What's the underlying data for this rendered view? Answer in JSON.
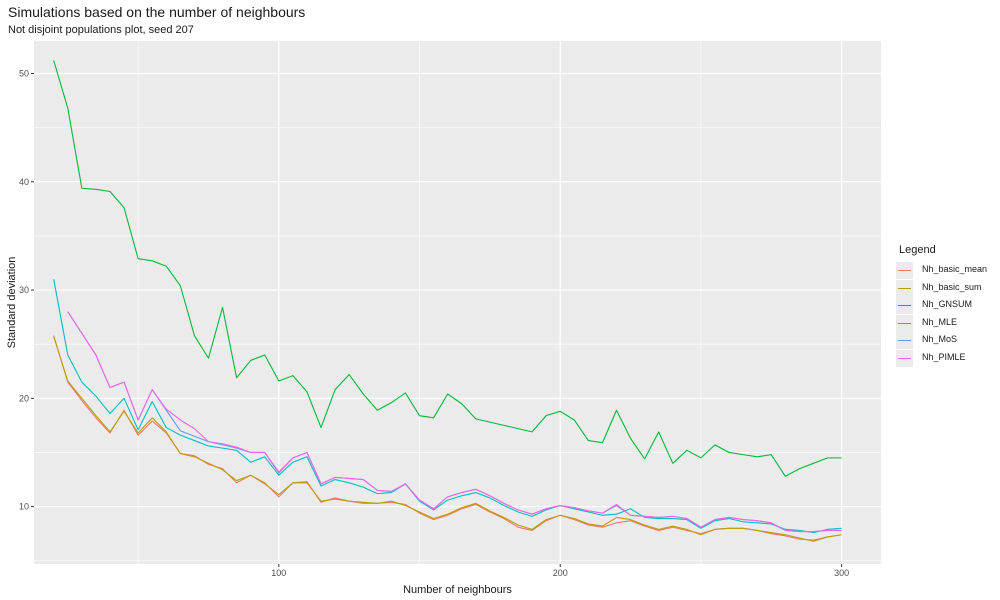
{
  "chart_data": {
    "type": "line",
    "title": "Simulations based on the number of neighbours",
    "subtitle": "Not disjoint populations plot, seed 207",
    "xlabel": "Number of neighbours",
    "ylabel": "Standard deviation",
    "xlim": [
      13,
      314
    ],
    "ylim": [
      4.7,
      53
    ],
    "x_ticks": [
      100,
      200,
      300
    ],
    "y_ticks": [
      10,
      20,
      30,
      40,
      50
    ],
    "grid": true,
    "legend_title": "Legend",
    "legend_position": "right",
    "x": [
      20,
      25,
      30,
      35,
      40,
      45,
      50,
      55,
      60,
      65,
      70,
      75,
      80,
      85,
      90,
      95,
      100,
      105,
      110,
      115,
      120,
      125,
      130,
      135,
      140,
      145,
      150,
      155,
      160,
      165,
      170,
      175,
      180,
      185,
      190,
      195,
      200,
      205,
      210,
      215,
      220,
      225,
      230,
      235,
      240,
      245,
      250,
      255,
      260,
      265,
      270,
      275,
      280,
      285,
      290,
      295,
      300
    ],
    "series": [
      {
        "name": "Nh_basic_mean",
        "color": "#F8766D",
        "values": [
          25.8,
          21.5,
          19.8,
          18.2,
          16.8,
          18.9,
          16.6,
          17.9,
          16.8,
          14.9,
          14.7,
          13.9,
          13.5,
          12.2,
          12.9,
          12.2,
          10.9,
          12.2,
          12.3,
          10.4,
          10.8,
          10.5,
          10.3,
          10.3,
          10.4,
          10.2,
          9.4,
          8.8,
          9.2,
          9.8,
          10.2,
          9.5,
          8.9,
          8.1,
          7.8,
          8.7,
          9.2,
          8.8,
          8.3,
          8.1,
          8.5,
          8.7,
          8.2,
          7.8,
          8.1,
          7.8,
          7.5,
          7.9,
          8.0,
          8.0,
          7.8,
          7.5,
          7.3,
          7.0,
          6.9,
          7.2,
          7.4
        ]
      },
      {
        "name": "Nh_basic_sum",
        "color": "#B79F00",
        "values": [
          25.7,
          21.6,
          20.0,
          18.4,
          16.9,
          18.8,
          16.8,
          18.2,
          16.9,
          14.9,
          14.6,
          14.0,
          13.4,
          12.4,
          12.9,
          12.1,
          11.1,
          12.2,
          12.2,
          10.5,
          10.7,
          10.5,
          10.4,
          10.3,
          10.5,
          10.1,
          9.5,
          8.9,
          9.3,
          9.9,
          10.3,
          9.6,
          9.0,
          8.3,
          7.9,
          8.8,
          9.2,
          8.9,
          8.4,
          8.2,
          9.0,
          8.8,
          8.3,
          7.9,
          8.2,
          7.9,
          7.4,
          7.9,
          8.0,
          8.0,
          7.8,
          7.6,
          7.4,
          7.1,
          6.8,
          7.2,
          7.4
        ]
      },
      {
        "name": "Nh_GNSUM",
        "color": "#00BA38",
        "values": [
          51.2,
          46.8,
          39.4,
          39.3,
          39.1,
          37.6,
          32.9,
          32.7,
          32.2,
          30.4,
          25.8,
          23.7,
          28.4,
          21.9,
          23.5,
          24.0,
          21.6,
          22.1,
          20.6,
          17.3,
          20.8,
          22.2,
          20.4,
          18.9,
          19.6,
          20.5,
          18.4,
          18.2,
          20.4,
          19.5,
          18.1,
          17.8,
          17.5,
          17.2,
          16.9,
          18.4,
          18.8,
          18.0,
          16.1,
          15.9,
          18.9,
          16.3,
          14.4,
          16.9,
          14.0,
          15.2,
          14.5,
          15.7,
          15.0,
          14.8,
          14.6,
          14.8,
          12.8,
          13.5,
          14.0,
          14.5,
          14.5
        ]
      },
      {
        "name": "Nh_MLE",
        "color": "#00BFC4",
        "values": [
          31.0,
          24.0,
          21.5,
          20.2,
          18.6,
          20.0,
          17.1,
          19.7,
          17.3,
          16.6,
          16.1,
          15.6,
          15.4,
          15.2,
          14.1,
          14.6,
          12.9,
          14.1,
          14.6,
          11.9,
          12.5,
          12.2,
          11.8,
          11.2,
          11.3,
          12.1,
          10.5,
          9.7,
          10.6,
          11.0,
          11.3,
          10.8,
          10.1,
          9.5,
          9.1,
          9.7,
          10.1,
          9.8,
          9.5,
          9.2,
          9.3,
          9.8,
          9.0,
          8.9,
          8.9,
          8.8,
          8.0,
          8.7,
          8.9,
          8.6,
          8.5,
          8.4,
          7.9,
          7.8,
          7.6,
          7.9,
          8.0
        ]
      },
      {
        "name": "Nh_MoS",
        "color": "#619CFF",
        "values": [
          null,
          28.0,
          26.0,
          24.0,
          21.0,
          21.5,
          18.0,
          20.8,
          18.9,
          17.0,
          16.5,
          16.0,
          15.7,
          15.4,
          15.0,
          15.0,
          13.1,
          14.5,
          15.0,
          12.1,
          12.7,
          12.6,
          12.5,
          11.5,
          11.4,
          12.1,
          10.6,
          9.8,
          10.9,
          11.3,
          11.6,
          11.0,
          10.3,
          9.7,
          9.3,
          9.8,
          10.1,
          9.9,
          9.6,
          9.4,
          10.1,
          9.2,
          9.1,
          9.0,
          9.1,
          8.9,
          8.1,
          8.8,
          9.0,
          8.8,
          8.7,
          8.5,
          7.8,
          7.7,
          7.7,
          7.8,
          7.8
        ]
      },
      {
        "name": "Nh_PIMLE",
        "color": "#F564E3",
        "values": [
          null,
          28.0,
          26.0,
          24.0,
          21.0,
          21.5,
          18.0,
          20.8,
          19.0,
          18.0,
          17.2,
          16.0,
          15.8,
          15.5,
          15.0,
          15.0,
          13.2,
          14.5,
          15.0,
          12.1,
          12.7,
          12.6,
          12.5,
          11.5,
          11.4,
          12.1,
          10.6,
          9.8,
          10.9,
          11.3,
          11.6,
          11.0,
          10.3,
          9.7,
          9.3,
          9.8,
          10.1,
          9.9,
          9.6,
          9.4,
          10.2,
          9.2,
          9.1,
          9.0,
          9.1,
          8.9,
          8.1,
          8.8,
          9.0,
          8.8,
          8.7,
          8.5,
          7.8,
          7.7,
          7.7,
          7.8,
          7.8
        ]
      }
    ]
  }
}
